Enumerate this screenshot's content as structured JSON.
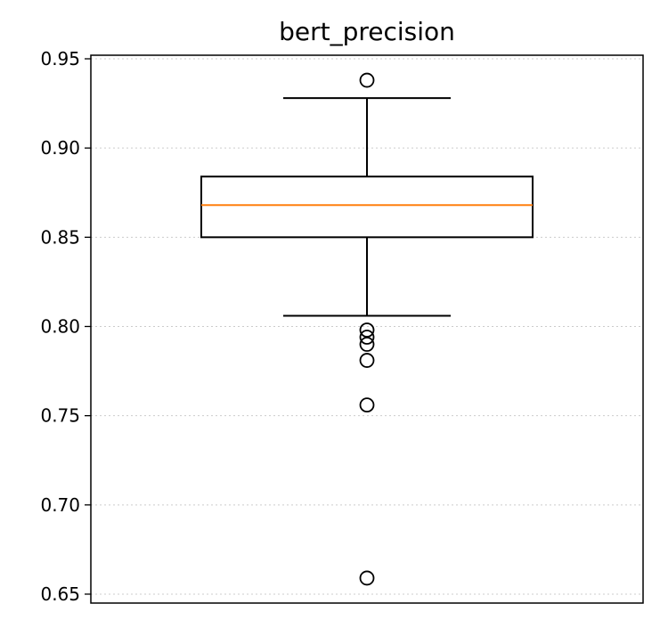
{
  "chart_data": {
    "type": "box",
    "title": "bert_precision",
    "xlabel": "",
    "ylabel": "",
    "ylim": [
      0.645,
      0.952
    ],
    "yticks": [
      0.65,
      0.7,
      0.75,
      0.8,
      0.85,
      0.9,
      0.95
    ],
    "ytick_labels": [
      "0.65",
      "0.70",
      "0.75",
      "0.80",
      "0.85",
      "0.90",
      "0.95"
    ],
    "grid": "y-dotted",
    "box": {
      "whisker_low": 0.806,
      "q1": 0.85,
      "median": 0.868,
      "q3": 0.884,
      "whisker_high": 0.928
    },
    "outliers": [
      0.938,
      0.798,
      0.794,
      0.79,
      0.781,
      0.756,
      0.659
    ],
    "colors": {
      "box": "#000000",
      "median": "#ff7f0e",
      "grid": "#cccccc"
    }
  }
}
